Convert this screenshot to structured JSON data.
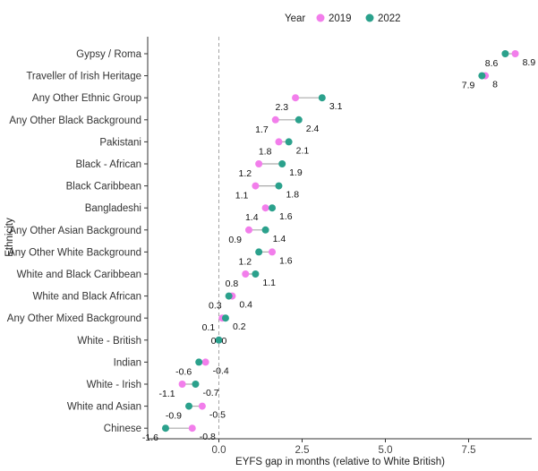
{
  "chart_data": {
    "type": "dumbbell",
    "xlabel": "EYFS gap in months (relative to White British)",
    "ylabel": "Ethnicity",
    "xlim": [
      -2.2,
      9.9
    ],
    "xticks": [
      {
        "value": 0,
        "label": "0.0"
      },
      {
        "value": 2.5,
        "label": "2.5"
      },
      {
        "value": 5,
        "label": "5.0"
      },
      {
        "value": 7.5,
        "label": "7.5"
      }
    ],
    "reference_line": {
      "x": 0,
      "style": "dashed"
    },
    "grid": false,
    "legend": {
      "title": "Year",
      "position": "top",
      "entries": [
        {
          "name": "2019",
          "color": "#F27EEB"
        },
        {
          "name": "2022",
          "color": "#2BA18C"
        }
      ]
    },
    "categories": [
      {
        "name": "Gypsy / Roma",
        "y2019": 8.9,
        "y2022": 8.6,
        "l2019": "8.9",
        "l2022": "8.6"
      },
      {
        "name": "Traveller of Irish Heritage",
        "y2019": 8.0,
        "y2022": 7.9,
        "l2019": "8",
        "l2022": "7.9"
      },
      {
        "name": "Any Other Ethnic Group",
        "y2019": 2.3,
        "y2022": 3.1,
        "l2019": "2.3",
        "l2022": "3.1"
      },
      {
        "name": "Any Other Black Background",
        "y2019": 1.7,
        "y2022": 2.4,
        "l2019": "1.7",
        "l2022": "2.4"
      },
      {
        "name": "Pakistani",
        "y2019": 1.8,
        "y2022": 2.1,
        "l2019": "1.8",
        "l2022": "2.1"
      },
      {
        "name": "Black - African",
        "y2019": 1.2,
        "y2022": 1.9,
        "l2019": "1.2",
        "l2022": "1.9"
      },
      {
        "name": "Black Caribbean",
        "y2019": 1.1,
        "y2022": 1.8,
        "l2019": "1.1",
        "l2022": "1.8"
      },
      {
        "name": "Bangladeshi",
        "y2019": 1.4,
        "y2022": 1.6,
        "l2019": "1.4",
        "l2022": "1.6"
      },
      {
        "name": "Any Other Asian Background",
        "y2019": 0.9,
        "y2022": 1.4,
        "l2019": "0.9",
        "l2022": "1.4"
      },
      {
        "name": "Any Other White Background",
        "y2019": 1.6,
        "y2022": 1.2,
        "l2019": "1.6",
        "l2022": "1.2"
      },
      {
        "name": "White and Black Caribbean",
        "y2019": 0.8,
        "y2022": 1.1,
        "l2019": "0.8",
        "l2022": "1.1"
      },
      {
        "name": "White and Black African",
        "y2019": 0.4,
        "y2022": 0.3,
        "l2019": "0.4",
        "l2022": "0.3"
      },
      {
        "name": "Any Other Mixed Background",
        "y2019": 0.1,
        "y2022": 0.2,
        "l2019": "0.1",
        "l2022": "0.2"
      },
      {
        "name": "White - British",
        "y2019": 0.0,
        "y2022": 0.0,
        "l2019": "0",
        "l2022": "0"
      },
      {
        "name": "Indian",
        "y2019": -0.4,
        "y2022": -0.6,
        "l2019": "-0.4",
        "l2022": "-0.6"
      },
      {
        "name": "White - Irish",
        "y2019": -1.1,
        "y2022": -0.7,
        "l2019": "-1.1",
        "l2022": "-0.7"
      },
      {
        "name": "White and Asian",
        "y2019": -0.5,
        "y2022": -0.9,
        "l2019": "-0.5",
        "l2022": "-0.9"
      },
      {
        "name": "Chinese",
        "y2019": -0.8,
        "y2022": -1.6,
        "l2019": "-0.8",
        "l2022": "-1.6"
      }
    ]
  }
}
